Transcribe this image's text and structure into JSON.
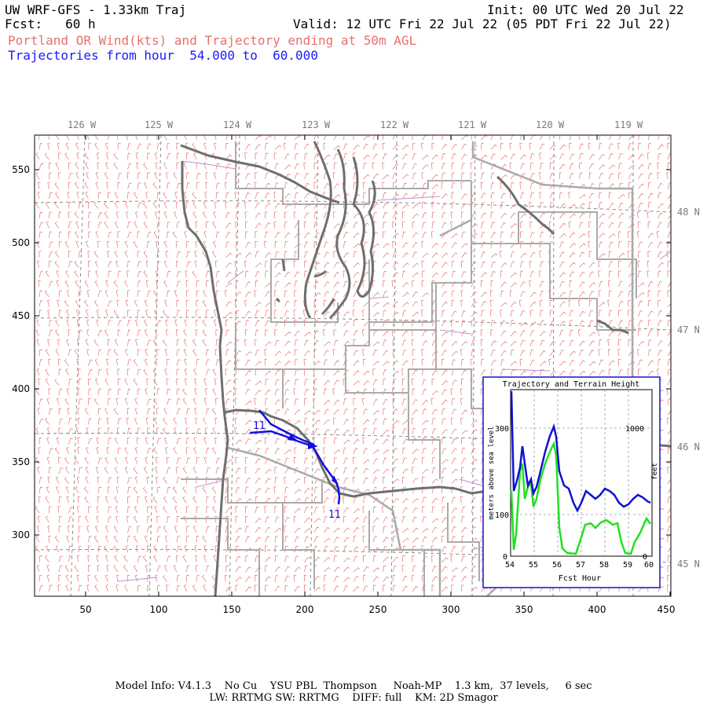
{
  "header": {
    "title": "UW WRF-GFS - 1.33km Traj",
    "init": "Init: 00 UTC Wed 20 Jul 22",
    "fcst": "Fcst:   60 h",
    "valid": "Valid: 12 UTC Fri 22 Jul 22 (05 PDT Fri 22 Jul 22)",
    "subtitle": "Portland OR Wind(kts) and Trajectory ending at 50m AGL",
    "traj_range": "Trajectories from hour  54.000 to  60.000"
  },
  "map": {
    "lon_labels": [
      "126 W",
      "125 W",
      "124 W",
      "123 W",
      "122 W",
      "121 W",
      "120 W",
      "119 W"
    ],
    "lat_labels": [
      "48 N",
      "47 N",
      "46 N",
      "45 N"
    ],
    "y_ticks": [
      "550",
      "500",
      "450",
      "400",
      "350",
      "300"
    ],
    "x_ticks": [
      "50",
      "100",
      "150",
      "200",
      "250",
      "300",
      "350",
      "400",
      "450"
    ],
    "traj_start_label": "11",
    "traj_end_label": "11",
    "colors": {
      "barbs": "#e8706f",
      "coast": "#6e6e6e",
      "borders": "#aaaaaa",
      "county": "#c48cd6",
      "traj": "#1010e0"
    }
  },
  "inset": {
    "title": "Trajectory and Terrain Height",
    "ylabel_left": "meters above sea level",
    "ylabel_right": "feet",
    "xlabel": "Fcst Hour",
    "x_ticks": [
      "54",
      "55",
      "56",
      "57",
      "58",
      "59",
      "60"
    ],
    "y_ticks_left": [
      "300",
      "100",
      "0"
    ],
    "y_ticks_right": [
      "1000",
      "0"
    ],
    "colors": {
      "trajectory": "#1010d0",
      "terrain": "#22e022"
    }
  },
  "footer": {
    "line1": "Model Info: V4.1.3    No Cu    YSU PBL  Thompson     Noah-MP    1.3 km,  37 levels,     6 sec",
    "line2": "LW: RRTMG SW: RRTMG    DIFF: full    KM: 2D Smagor"
  }
}
